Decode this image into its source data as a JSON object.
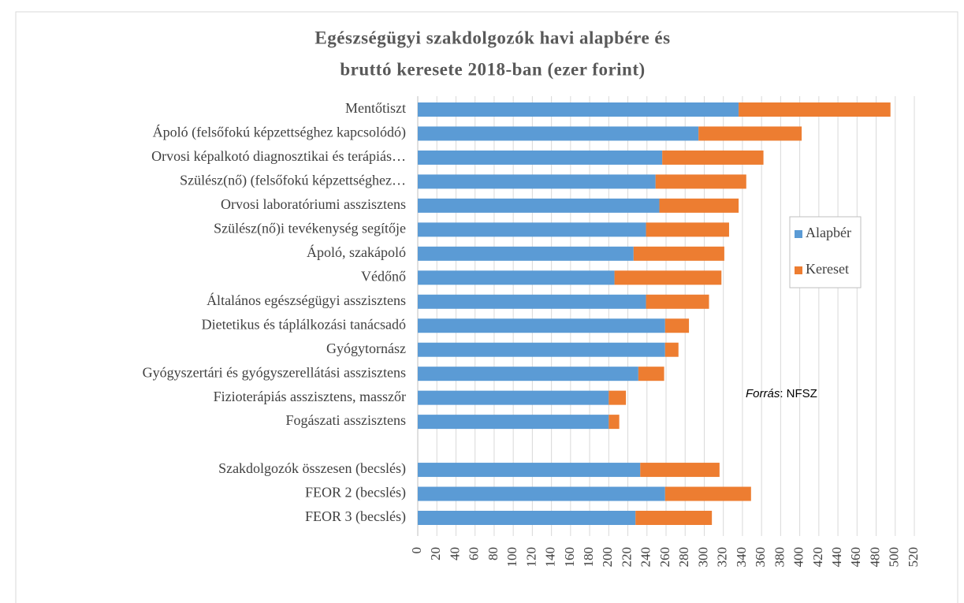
{
  "chart_data": {
    "type": "stacked_barh",
    "title": [
      "Egészségügyi szakdolgozók havi alapbére és",
      "bruttó keresete 2018-ban (ezer forint)"
    ],
    "categories": [
      "Mentőtiszt",
      "Ápoló (felsőfokú képzettséghez kapcsolódó)",
      "Orvosi képalkotó diagnosztikai és terápiás…",
      "Szülész(nő) (felsőfokú képzettséghez…",
      "Orvosi laboratóriumi asszisztens",
      "Szülész(nő)i tevékenység segítője",
      "Ápoló, szakápoló",
      "Védőnő",
      "Általános egészségügyi asszisztens",
      "Dietetikus és táplálkozási tanácsadó",
      "Gyógytornász",
      "Gyógyszertári és gyógyszerellátási asszisztens",
      "Fizioterápiás asszisztens, masszőr",
      "Fogászati asszisztens",
      null,
      "Szakdolgozók összesen (becslés)",
      "FEOR 2 (becslés)",
      "FEOR 3 (becslés)"
    ],
    "series": [
      {
        "name": "Alapbér",
        "color": "#5b9bd5",
        "values": [
          336,
          294,
          256,
          249,
          253,
          239,
          226,
          206,
          239,
          259,
          259,
          231,
          200,
          200,
          null,
          233,
          259,
          228
        ]
      },
      {
        "name": "Kereset",
        "color": "#ed7d31",
        "values": [
          159,
          108,
          106,
          95,
          83,
          87,
          95,
          112,
          66,
          25,
          14,
          27,
          18,
          11,
          null,
          83,
          90,
          80
        ]
      }
    ],
    "xlim": [
      0,
      520
    ],
    "xticks": [
      0,
      20,
      40,
      60,
      80,
      100,
      120,
      140,
      160,
      180,
      200,
      220,
      240,
      260,
      280,
      300,
      320,
      340,
      360,
      380,
      400,
      420,
      440,
      460,
      480,
      500,
      520
    ],
    "grid": true,
    "legend": "right",
    "annotation": {
      "italic": "Forrás",
      "rest": ": NFSZ"
    }
  }
}
